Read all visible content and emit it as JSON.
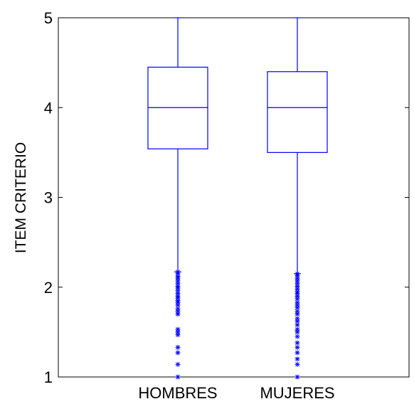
{
  "chart_data": {
    "type": "box",
    "title": "",
    "xlabel": "",
    "ylabel": "ITEM CRITERIO",
    "ylim": [
      1,
      5
    ],
    "yticks": [
      1,
      2,
      3,
      4,
      5
    ],
    "grid": false,
    "color": "#0000ff",
    "outlier_marker": "*",
    "categories": [
      "HOMBRES",
      "MUJERES"
    ],
    "boxes": [
      {
        "label": "HOMBRES",
        "whisker_low": 2.17,
        "q1": 3.54,
        "median": 4.0,
        "q3": 4.45,
        "whisker_high": 5.0,
        "outliers": [
          2.17,
          2.15,
          2.12,
          2.1,
          2.07,
          2.04,
          2.01,
          1.99,
          1.96,
          1.93,
          1.9,
          1.88,
          1.85,
          1.83,
          1.8,
          1.76,
          1.73,
          1.7,
          1.53,
          1.5,
          1.47,
          1.33,
          1.27,
          1.14,
          1.0
        ]
      },
      {
        "label": "MUJERES",
        "whisker_low": 2.15,
        "q1": 3.5,
        "median": 4.0,
        "q3": 4.4,
        "whisker_high": 5.0,
        "outliers": [
          2.15,
          2.13,
          2.1,
          2.07,
          2.04,
          2.01,
          1.98,
          1.95,
          1.93,
          1.9,
          1.87,
          1.83,
          1.8,
          1.77,
          1.73,
          1.7,
          1.65,
          1.62,
          1.58,
          1.53,
          1.5,
          1.45,
          1.38,
          1.33,
          1.27,
          1.2,
          1.14,
          1.0
        ]
      }
    ]
  }
}
